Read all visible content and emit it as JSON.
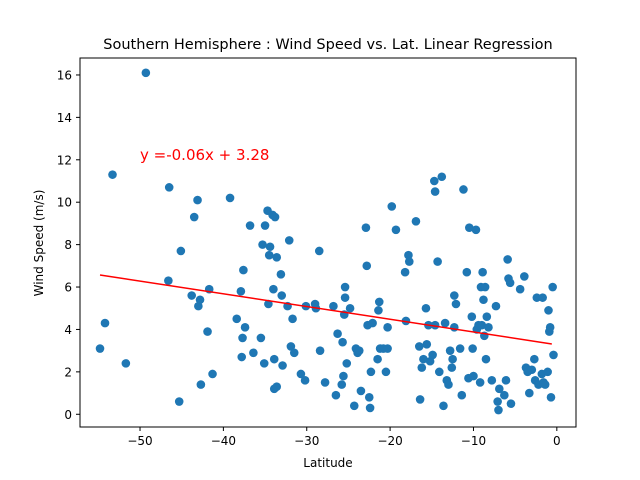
{
  "chart_data": {
    "type": "scatter",
    "title": "Southern Hemisphere : Wind Speed vs. Lat. Linear Regression",
    "xlabel": "Latitude",
    "ylabel": "Wind Speed (m/s)",
    "xlim": [
      -57.2,
      2.3
    ],
    "ylim": [
      -0.6,
      16.8
    ],
    "xticks": [
      -50,
      -40,
      -30,
      -20,
      -10,
      0
    ],
    "yticks": [
      0,
      2,
      4,
      6,
      8,
      10,
      12,
      14,
      16
    ],
    "grid": false,
    "legend": "none",
    "point_color": "#1f77b4",
    "line_color": "#ff0000",
    "annotation": {
      "text": "y =-0.06x + 3.28",
      "x": -50,
      "y": 12,
      "color": "#ff0000"
    },
    "regression": {
      "slope": -0.06,
      "intercept": 3.28,
      "x_range": [
        -54.8,
        -0.6
      ]
    },
    "points": [
      [
        -54.8,
        3.1
      ],
      [
        -54.2,
        4.3
      ],
      [
        -53.3,
        11.3
      ],
      [
        -51.7,
        2.4
      ],
      [
        -49.3,
        16.1
      ],
      [
        -46.6,
        6.3
      ],
      [
        -46.5,
        10.7
      ],
      [
        -45.3,
        0.6
      ],
      [
        -45.1,
        7.7
      ],
      [
        -43.8,
        5.6
      ],
      [
        -43.5,
        9.3
      ],
      [
        -43.1,
        10.1
      ],
      [
        -43.0,
        5.1
      ],
      [
        -42.8,
        5.4
      ],
      [
        -42.7,
        1.4
      ],
      [
        -41.9,
        3.9
      ],
      [
        -41.7,
        5.9
      ],
      [
        -41.3,
        1.9
      ],
      [
        -39.2,
        10.2
      ],
      [
        -38.4,
        4.5
      ],
      [
        -37.9,
        5.8
      ],
      [
        -37.8,
        2.7
      ],
      [
        -37.7,
        3.6
      ],
      [
        -37.6,
        6.8
      ],
      [
        -37.4,
        4.1
      ],
      [
        -36.8,
        8.9
      ],
      [
        -36.4,
        2.9
      ],
      [
        -35.5,
        3.6
      ],
      [
        -35.3,
        8.0
      ],
      [
        -35.1,
        2.4
      ],
      [
        -35.0,
        8.9
      ],
      [
        -34.7,
        9.6
      ],
      [
        -34.6,
        5.2
      ],
      [
        -34.5,
        7.5
      ],
      [
        -34.4,
        7.9
      ],
      [
        -34.1,
        9.4
      ],
      [
        -34.0,
        5.9
      ],
      [
        -33.9,
        2.6
      ],
      [
        -33.9,
        1.2
      ],
      [
        -33.8,
        9.3
      ],
      [
        -33.6,
        1.3
      ],
      [
        -33.6,
        7.4
      ],
      [
        -33.1,
        6.6
      ],
      [
        -33.0,
        5.6
      ],
      [
        -32.9,
        2.3
      ],
      [
        -32.3,
        5.1
      ],
      [
        -32.1,
        8.2
      ],
      [
        -31.9,
        3.2
      ],
      [
        -31.7,
        4.5
      ],
      [
        -31.5,
        2.9
      ],
      [
        -30.7,
        1.9
      ],
      [
        -30.2,
        1.6
      ],
      [
        -30.1,
        5.1
      ],
      [
        -29.0,
        5.2
      ],
      [
        -28.9,
        5.0
      ],
      [
        -28.5,
        7.7
      ],
      [
        -28.4,
        3.0
      ],
      [
        -27.8,
        1.5
      ],
      [
        -26.8,
        5.1
      ],
      [
        -26.5,
        0.9
      ],
      [
        -26.3,
        3.8
      ],
      [
        -25.8,
        1.4
      ],
      [
        -25.7,
        3.4
      ],
      [
        -25.6,
        1.8
      ],
      [
        -25.5,
        4.7
      ],
      [
        -25.4,
        5.5
      ],
      [
        -25.4,
        6.0
      ],
      [
        -25.2,
        2.4
      ],
      [
        -24.8,
        5.0
      ],
      [
        -24.3,
        0.4
      ],
      [
        -24.1,
        3.1
      ],
      [
        -23.9,
        2.9
      ],
      [
        -23.7,
        3.0
      ],
      [
        -23.5,
        1.1
      ],
      [
        -22.9,
        8.8
      ],
      [
        -22.8,
        7.0
      ],
      [
        -22.7,
        4.2
      ],
      [
        -22.5,
        0.8
      ],
      [
        -22.4,
        0.3
      ],
      [
        -22.3,
        2.0
      ],
      [
        -22.1,
        4.3
      ],
      [
        -21.5,
        2.6
      ],
      [
        -21.4,
        4.9
      ],
      [
        -21.3,
        5.3
      ],
      [
        -21.2,
        3.1
      ],
      [
        -20.8,
        3.1
      ],
      [
        -20.5,
        2.0
      ],
      [
        -20.3,
        3.1
      ],
      [
        -20.3,
        4.1
      ],
      [
        -19.8,
        9.8
      ],
      [
        -19.3,
        8.7
      ],
      [
        -18.2,
        6.7
      ],
      [
        -18.1,
        4.4
      ],
      [
        -17.8,
        7.5
      ],
      [
        -17.7,
        7.2
      ],
      [
        -16.9,
        9.1
      ],
      [
        -16.5,
        3.2
      ],
      [
        -16.4,
        0.7
      ],
      [
        -16.2,
        2.2
      ],
      [
        -16.0,
        2.6
      ],
      [
        -15.7,
        5.0
      ],
      [
        -15.6,
        3.3
      ],
      [
        -15.4,
        4.2
      ],
      [
        -15.2,
        2.5
      ],
      [
        -14.9,
        2.8
      ],
      [
        -14.7,
        11.0
      ],
      [
        -14.6,
        4.2
      ],
      [
        -14.6,
        10.5
      ],
      [
        -14.3,
        7.2
      ],
      [
        -14.1,
        2.0
      ],
      [
        -13.8,
        11.2
      ],
      [
        -13.6,
        0.4
      ],
      [
        -13.4,
        4.3
      ],
      [
        -13.2,
        1.6
      ],
      [
        -13.0,
        1.4
      ],
      [
        -12.8,
        3.0
      ],
      [
        -12.6,
        2.2
      ],
      [
        -12.5,
        2.6
      ],
      [
        -12.3,
        4.1
      ],
      [
        -12.3,
        5.6
      ],
      [
        -12.1,
        5.2
      ],
      [
        -11.6,
        3.1
      ],
      [
        -11.4,
        0.9
      ],
      [
        -11.2,
        10.6
      ],
      [
        -10.8,
        6.7
      ],
      [
        -10.6,
        1.7
      ],
      [
        -10.5,
        8.8
      ],
      [
        -10.2,
        4.6
      ],
      [
        -10.1,
        3.1
      ],
      [
        -10.0,
        1.8
      ],
      [
        -9.7,
        8.7
      ],
      [
        -9.6,
        4.0
      ],
      [
        -9.4,
        4.2
      ],
      [
        -9.2,
        1.5
      ],
      [
        -9.1,
        6.0
      ],
      [
        -9.0,
        4.2
      ],
      [
        -8.9,
        6.7
      ],
      [
        -8.8,
        5.4
      ],
      [
        -8.7,
        3.7
      ],
      [
        -8.6,
        6.0
      ],
      [
        -8.5,
        2.6
      ],
      [
        -8.4,
        4.6
      ],
      [
        -8.2,
        4.1
      ],
      [
        -7.8,
        1.6
      ],
      [
        -7.3,
        5.1
      ],
      [
        -7.1,
        0.6
      ],
      [
        -7.0,
        0.2
      ],
      [
        -6.9,
        1.2
      ],
      [
        -6.3,
        0.9
      ],
      [
        -6.1,
        1.6
      ],
      [
        -5.9,
        7.3
      ],
      [
        -5.8,
        6.4
      ],
      [
        -5.6,
        6.2
      ],
      [
        -5.5,
        0.5
      ],
      [
        -4.4,
        5.9
      ],
      [
        -3.9,
        6.5
      ],
      [
        -3.7,
        2.2
      ],
      [
        -3.5,
        2.0
      ],
      [
        -3.3,
        1.0
      ],
      [
        -3.0,
        2.1
      ],
      [
        -2.7,
        2.6
      ],
      [
        -2.6,
        1.6
      ],
      [
        -2.4,
        5.5
      ],
      [
        -2.2,
        1.4
      ],
      [
        -1.8,
        1.9
      ],
      [
        -1.7,
        5.5
      ],
      [
        -1.6,
        1.5
      ],
      [
        -1.4,
        1.4
      ],
      [
        -1.1,
        2.0
      ],
      [
        -1.0,
        4.9
      ],
      [
        -0.9,
        3.9
      ],
      [
        -0.8,
        4.1
      ],
      [
        -0.7,
        0.8
      ],
      [
        -0.5,
        6.0
      ],
      [
        -0.4,
        2.8
      ]
    ]
  }
}
